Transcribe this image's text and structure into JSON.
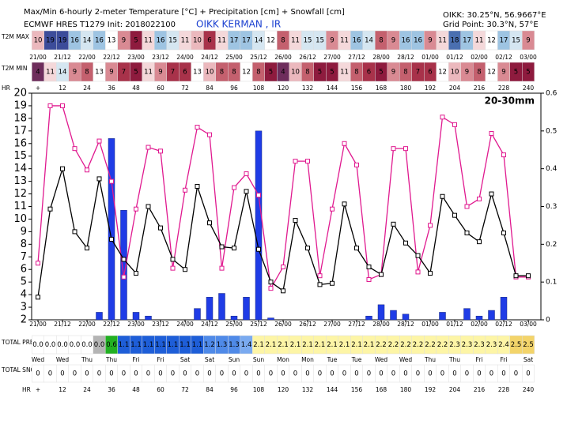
{
  "header": {
    "title": "Max/Min 6-hourly 2-meter Temperature [°C] + Precipitation [cm] + Snowfall [cm]",
    "model": "ECMWF HRES T1279 Init: 2018022100",
    "station": "OIKK KERMAN , IR",
    "coords": "OIKK: 30.25°N, 56.9667°E",
    "grid_point": "Grid Point: 30.3°N, 57°E"
  },
  "chart_data": {
    "type": "meteogram",
    "annotation": "20-30mm",
    "x": [
      0,
      6,
      12,
      18,
      24,
      30,
      36,
      42,
      48,
      54,
      60,
      66,
      72,
      78,
      84,
      90,
      96,
      102,
      108,
      114,
      120,
      126,
      132,
      138,
      144,
      150,
      156,
      162,
      168,
      174,
      180,
      186,
      192,
      198,
      204,
      210,
      216,
      222,
      228,
      234,
      240
    ],
    "xlim": [
      0,
      240
    ],
    "ylim": [
      2,
      20
    ],
    "yticks": [
      2,
      3,
      4,
      5,
      6,
      7,
      8,
      9,
      10,
      11,
      12,
      13,
      14,
      15,
      16,
      17,
      18,
      19,
      20
    ],
    "y2lim": [
      0,
      0.6
    ],
    "y2ticks": [
      0,
      0.1,
      0.2,
      0.3,
      0.4,
      0.5,
      0.6
    ],
    "date_ticks": [
      "21/00",
      "21/12",
      "22/00",
      "22/12",
      "23/00",
      "23/12",
      "24/00",
      "24/12",
      "25/00",
      "25/12",
      "26/00",
      "26/12",
      "27/00",
      "27/12",
      "28/00",
      "28/12",
      "01/00",
      "01/12",
      "02/00",
      "02/12",
      "03/00"
    ],
    "day_ticks": [
      "Wed",
      "Wed",
      "Thu",
      "Thu",
      "Fri",
      "Fri",
      "Sat",
      "Sat",
      "Sun",
      "Sun",
      "Mon",
      "Mon",
      "Tue",
      "Tue",
      "Wed",
      "Wed",
      "Thu",
      "Thu",
      "Fri",
      "Fri",
      "Sat"
    ],
    "hr_label": "HR",
    "hr_ticks": [
      {
        "value": 0,
        "label": "+"
      },
      12,
      24,
      36,
      48,
      60,
      72,
      84,
      96,
      108,
      120,
      132,
      144,
      156,
      168,
      180,
      192,
      204,
      216,
      228,
      240
    ],
    "series": [
      {
        "color": "#e0198f",
        "values": [
          6.5,
          19,
          19,
          15.6,
          13.9,
          16.2,
          13,
          5.4,
          10.8,
          15.7,
          15.4,
          6.1,
          12.3,
          17.3,
          16.7,
          6.1,
          12.5,
          13.6,
          11.9,
          4.5,
          6.2,
          14.6,
          14.6,
          5.5,
          10.8,
          16,
          14.3,
          5.2,
          5.6,
          15.6,
          15.6,
          5.8,
          9.5,
          18.1,
          17.5,
          11,
          11.6,
          16.8,
          15.1,
          5.4,
          5.4
        ]
      },
      {
        "color": "#000000",
        "values": [
          3.8,
          10.8,
          14,
          9,
          7.7,
          13.2,
          8.4,
          6.8,
          5.7,
          11,
          9.3,
          6.8,
          6,
          12.6,
          9.7,
          7.8,
          7.7,
          12.2,
          7.6,
          5,
          4.3,
          9.9,
          7.7,
          4.8,
          4.9,
          11.2,
          7.7,
          6.2,
          5.6,
          9.6,
          8.1,
          7.1,
          5.7,
          11.8,
          10.3,
          8.9,
          8.2,
          12,
          8.9,
          5.5,
          5.5
        ]
      },
      {
        "color": "#1f3ce6",
        "axis": "y2",
        "values": [
          0,
          0,
          0,
          0,
          0,
          0.02,
          0.48,
          0.29,
          0.02,
          0.01,
          0,
          0,
          0,
          0.03,
          0.06,
          0.07,
          0.01,
          0.06,
          0.5,
          0.005,
          0,
          0,
          0,
          0,
          0,
          0,
          0,
          0.01,
          0.04,
          0.025,
          0.015,
          0,
          0,
          0.02,
          0,
          0.03,
          0.01,
          0.025,
          0.06,
          0,
          0
        ]
      }
    ],
    "max_row": {
      "label": "T2M MAX",
      "values": [
        10,
        19,
        19,
        16,
        14,
        16,
        13,
        9,
        5,
        11,
        16,
        15,
        11,
        10,
        6,
        11,
        17,
        17,
        14,
        12,
        8,
        11,
        15,
        15,
        9,
        11,
        16,
        14,
        8,
        9,
        16,
        16,
        9,
        11,
        18,
        17,
        11,
        12,
        17,
        15,
        9
      ]
    },
    "min_row": {
      "label": "T2M MIN",
      "values": [
        4,
        11,
        14,
        9,
        8,
        13,
        9,
        7,
        5,
        11,
        9,
        7,
        6,
        13,
        10,
        8,
        8,
        12,
        8,
        5,
        4,
        10,
        8,
        5,
        5,
        11,
        8,
        6,
        5,
        9,
        8,
        7,
        6,
        12,
        10,
        9,
        8,
        12,
        9,
        5,
        5
      ]
    },
    "precip_row": {
      "label": "TOTAL PRECIP",
      "values": [
        0,
        0,
        0,
        0,
        0,
        0,
        0.6,
        1.1,
        1.1,
        1.1,
        1.1,
        1.1,
        1.1,
        1.1,
        1.2,
        1.3,
        1.3,
        1.4,
        2.1,
        2.1,
        2.1,
        2.1,
        2.1,
        2.1,
        2.1,
        2.1,
        2.1,
        2.1,
        2.2,
        2.2,
        2.2,
        2.2,
        2.2,
        2.2,
        2.3,
        2.3,
        2.3,
        2.3,
        2.4,
        2.5,
        2.5
      ],
      "value_labels": [
        "0.0",
        "0.0",
        "0.0",
        "0.0",
        "0.0",
        "0.0",
        "0.6",
        "1.1",
        "1.1",
        "1.1",
        "1.1",
        "1.1",
        "1.1",
        "1.1",
        "1.2",
        "1.3",
        "1.3",
        "1.4",
        "2.1",
        "2.1",
        "2.1",
        "2.1",
        "2.1",
        "2.1",
        "2.1",
        "2.1",
        "2.1",
        "2.1",
        "2.2",
        "2.2",
        "2.2",
        "2.2",
        "2.2",
        "2.2",
        "2.3",
        "2.3",
        "2.3",
        "2.3",
        "2.4",
        "2.5",
        "2.5"
      ],
      "colors": [
        "#ffffff",
        "#ffffff",
        "#ffffff",
        "#ffffff",
        "#ffffff",
        "#b4b4b4",
        "#22b022",
        "#1e5ed8",
        "#1e5ed8",
        "#1e5ed8",
        "#1e5ed8",
        "#1e5ed8",
        "#1e5ed8",
        "#1e5ed8",
        "#4f8ae8",
        "#4f8ae8",
        "#4f8ae8",
        "#7aaaf0",
        "#fdf5a6",
        "#fdf5a6",
        "#fdf5a6",
        "#fdf5a6",
        "#fdf5a6",
        "#fdf5a6",
        "#fdf5a6",
        "#fdf5a6",
        "#fdf5a6",
        "#fdf5a6",
        "#fdf5a6",
        "#fdf5a6",
        "#fdf5a6",
        "#fdf5a6",
        "#fdf5a6",
        "#fdf5a6",
        "#fdf5a6",
        "#fdf5a6",
        "#fdf5a6",
        "#fdf5a6",
        "#fdf5a6",
        "#f3d46a",
        "#f3d46a"
      ]
    },
    "snow_row": {
      "label": "TOTAL SNOW",
      "values": [
        0,
        0,
        0,
        0,
        0,
        0,
        0,
        0,
        0,
        0,
        0,
        0,
        0,
        0,
        0,
        0,
        0,
        0,
        0,
        0,
        0,
        0,
        0,
        0,
        0,
        0,
        0,
        0,
        0,
        0,
        0,
        0,
        0,
        0,
        0,
        0,
        0,
        0,
        0,
        0,
        0
      ]
    }
  }
}
